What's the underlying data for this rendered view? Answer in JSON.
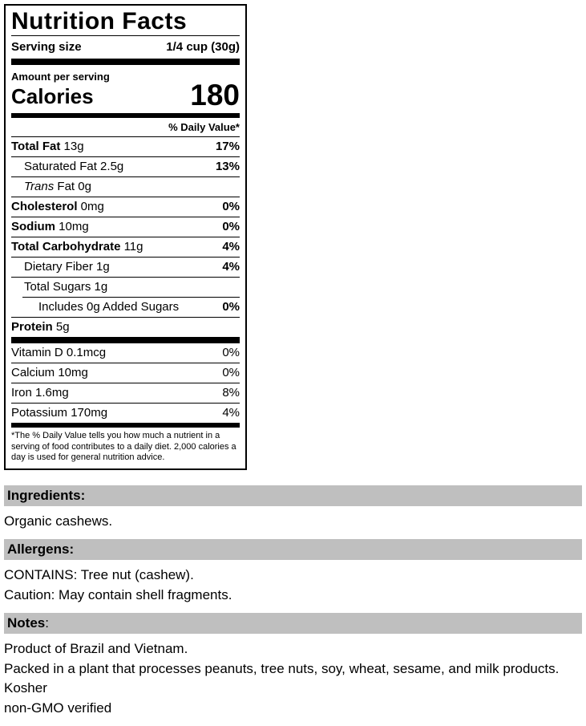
{
  "colors": {
    "section_header_bg": "#BFBFBF",
    "rule_color": "#000000",
    "text_color": "#000000",
    "background": "#FFFFFF"
  },
  "label": {
    "title": "Nutrition Facts",
    "serving_size_label": "Serving size",
    "serving_size_value": "1/4 cup (30g)",
    "amount_per_serving": "Amount per serving",
    "calories_label": "Calories",
    "calories_value": "180",
    "daily_value_header": "% Daily Value*",
    "rows": [
      {
        "lead": "Total Fat",
        "rest": " 13g",
        "dv": "17%"
      },
      {
        "lead": "",
        "rest": "Saturated Fat 2.5g",
        "dv": "13%"
      },
      {
        "lead": "Trans",
        "rest": " Fat 0g",
        "dv": ""
      },
      {
        "lead": "Cholesterol",
        "rest": " 0mg",
        "dv": "0%"
      },
      {
        "lead": "Sodium",
        "rest": " 10mg",
        "dv": "0%"
      },
      {
        "lead": "Total Carbohydrate",
        "rest": " 11g",
        "dv": "4%"
      },
      {
        "lead": "",
        "rest": "Dietary Fiber 1g",
        "dv": "4%"
      },
      {
        "lead": "",
        "rest": "Total Sugars 1g",
        "dv": ""
      },
      {
        "lead": "",
        "rest": "Includes 0g Added Sugars",
        "dv": "0%"
      },
      {
        "lead": "Protein",
        "rest": " 5g",
        "dv": ""
      }
    ],
    "vitamin_rows": [
      {
        "rest": "Vitamin D 0.1mcg",
        "dv": "0%"
      },
      {
        "rest": "Calcium 10mg",
        "dv": "0%"
      },
      {
        "rest": "Iron 1.6mg",
        "dv": "8%"
      },
      {
        "rest": "Potassium 170mg",
        "dv": "4%"
      }
    ],
    "footnote": "*The % Daily Value tells you how much a nutrient in a serving of food contributes to a daily diet. 2,000 calories a day is used for general nutrition advice."
  },
  "sections": [
    {
      "header_bold": "Ingredients:",
      "header_tail": "",
      "lines": [
        "Organic cashews."
      ]
    },
    {
      "header_bold": "Allergens:",
      "header_tail": "",
      "lines": [
        "CONTAINS: Tree nut (cashew).",
        "Caution: May contain shell fragments."
      ]
    },
    {
      "header_bold": "Notes",
      "header_tail": ":",
      "lines": [
        "Product of Brazil and Vietnam.",
        "Packed in a plant that processes peanuts, tree nuts, soy, wheat, sesame, and milk products.",
        "Kosher",
        "non-GMO verified"
      ]
    }
  ]
}
